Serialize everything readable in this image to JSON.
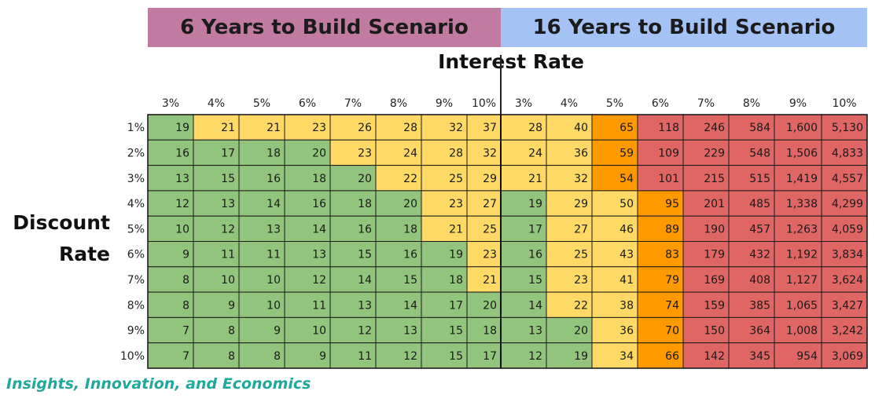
{
  "header": {
    "left_scenario": "6 Years to Build Scenario",
    "right_scenario": "16 Years to Build Scenario",
    "left_color": "#c27ba0",
    "right_color": "#a4c2f4"
  },
  "axis": {
    "x_title": "Interest Rate",
    "y_title_line1": "Discount",
    "y_title_line2": "Rate"
  },
  "footer": {
    "brand": "Insights, Innovation, and Economics"
  },
  "colors": {
    "green": "#93c47d",
    "yellow": "#ffd966",
    "orange": "#ff9900",
    "red": "#e06666",
    "brand_teal": "#1fa89b"
  },
  "chart_data": {
    "type": "heatmap",
    "title": "",
    "xlabel": "Interest Rate",
    "ylabel": "Discount Rate",
    "groups": [
      {
        "name": "6 Years to Build Scenario",
        "columns": [
          "3%",
          "4%",
          "5%",
          "6%",
          "7%",
          "8%",
          "9%",
          "10%"
        ]
      },
      {
        "name": "16 Years to Build Scenario",
        "columns": [
          "3%",
          "4%",
          "5%",
          "6%",
          "7%",
          "8%",
          "9%",
          "10%"
        ]
      }
    ],
    "rows": [
      "1%",
      "2%",
      "3%",
      "4%",
      "5%",
      "6%",
      "7%",
      "8%",
      "9%",
      "10%"
    ],
    "values": [
      [
        "19",
        "21",
        "21",
        "23",
        "26",
        "28",
        "32",
        "37",
        "28",
        "40",
        "65",
        "118",
        "246",
        "584",
        "1,600",
        "5,130"
      ],
      [
        "16",
        "17",
        "18",
        "20",
        "23",
        "24",
        "28",
        "32",
        "24",
        "36",
        "59",
        "109",
        "229",
        "548",
        "1,506",
        "4,833"
      ],
      [
        "13",
        "15",
        "16",
        "18",
        "20",
        "22",
        "25",
        "29",
        "21",
        "32",
        "54",
        "101",
        "215",
        "515",
        "1,419",
        "4,557"
      ],
      [
        "12",
        "13",
        "14",
        "16",
        "18",
        "20",
        "23",
        "27",
        "19",
        "29",
        "50",
        "95",
        "201",
        "485",
        "1,338",
        "4,299"
      ],
      [
        "10",
        "12",
        "13",
        "14",
        "16",
        "18",
        "21",
        "25",
        "17",
        "27",
        "46",
        "89",
        "190",
        "457",
        "1,263",
        "4,059"
      ],
      [
        "9",
        "11",
        "11",
        "13",
        "15",
        "16",
        "19",
        "23",
        "16",
        "25",
        "43",
        "83",
        "179",
        "432",
        "1,192",
        "3,834"
      ],
      [
        "8",
        "10",
        "10",
        "12",
        "14",
        "15",
        "18",
        "21",
        "15",
        "23",
        "41",
        "79",
        "169",
        "408",
        "1,127",
        "3,624"
      ],
      [
        "8",
        "9",
        "10",
        "11",
        "13",
        "14",
        "17",
        "20",
        "14",
        "22",
        "38",
        "74",
        "159",
        "385",
        "1,065",
        "3,427"
      ],
      [
        "7",
        "8",
        "9",
        "10",
        "12",
        "13",
        "15",
        "18",
        "13",
        "20",
        "36",
        "70",
        "150",
        "364",
        "1,008",
        "3,242"
      ],
      [
        "7",
        "8",
        "8",
        "9",
        "11",
        "12",
        "15",
        "17",
        "12",
        "19",
        "34",
        "66",
        "142",
        "345",
        "954",
        "3,069"
      ]
    ],
    "cell_colors": [
      [
        "green",
        "yellow",
        "yellow",
        "yellow",
        "yellow",
        "yellow",
        "yellow",
        "yellow",
        "yellow",
        "yellow",
        "orange",
        "red",
        "red",
        "red",
        "red",
        "red"
      ],
      [
        "green",
        "green",
        "green",
        "green",
        "yellow",
        "yellow",
        "yellow",
        "yellow",
        "yellow",
        "yellow",
        "orange",
        "red",
        "red",
        "red",
        "red",
        "red"
      ],
      [
        "green",
        "green",
        "green",
        "green",
        "green",
        "yellow",
        "yellow",
        "yellow",
        "yellow",
        "yellow",
        "orange",
        "red",
        "red",
        "red",
        "red",
        "red"
      ],
      [
        "green",
        "green",
        "green",
        "green",
        "green",
        "green",
        "yellow",
        "yellow",
        "green",
        "yellow",
        "yellow",
        "orange",
        "red",
        "red",
        "red",
        "red"
      ],
      [
        "green",
        "green",
        "green",
        "green",
        "green",
        "green",
        "yellow",
        "yellow",
        "green",
        "yellow",
        "yellow",
        "orange",
        "red",
        "red",
        "red",
        "red"
      ],
      [
        "green",
        "green",
        "green",
        "green",
        "green",
        "green",
        "green",
        "yellow",
        "green",
        "yellow",
        "yellow",
        "orange",
        "red",
        "red",
        "red",
        "red"
      ],
      [
        "green",
        "green",
        "green",
        "green",
        "green",
        "green",
        "green",
        "yellow",
        "green",
        "yellow",
        "yellow",
        "orange",
        "red",
        "red",
        "red",
        "red"
      ],
      [
        "green",
        "green",
        "green",
        "green",
        "green",
        "green",
        "green",
        "green",
        "green",
        "yellow",
        "yellow",
        "orange",
        "red",
        "red",
        "red",
        "red"
      ],
      [
        "green",
        "green",
        "green",
        "green",
        "green",
        "green",
        "green",
        "green",
        "green",
        "green",
        "yellow",
        "orange",
        "red",
        "red",
        "red",
        "red"
      ],
      [
        "green",
        "green",
        "green",
        "green",
        "green",
        "green",
        "green",
        "green",
        "green",
        "green",
        "yellow",
        "orange",
        "red",
        "red",
        "red",
        "red"
      ]
    ]
  }
}
